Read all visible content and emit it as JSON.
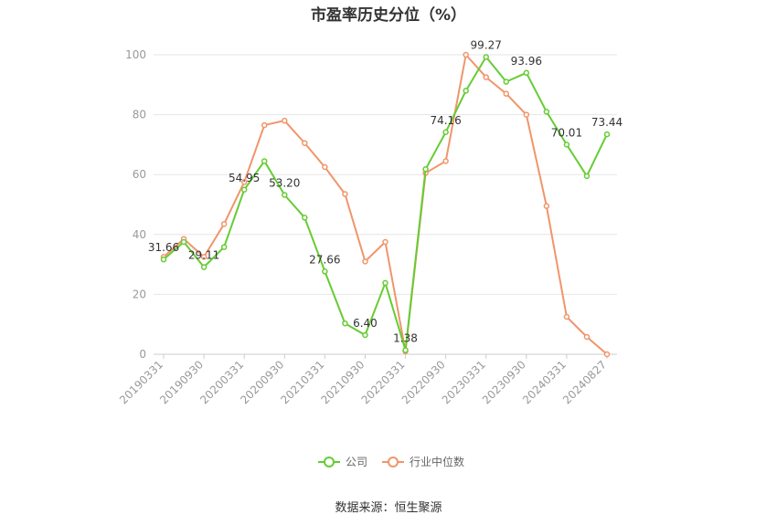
{
  "chart_data": {
    "type": "line",
    "title": "市盈率历史分位（%）",
    "source": "数据来源：恒生聚源",
    "ylim": [
      0,
      100
    ],
    "yticks": [
      0,
      20,
      40,
      60,
      80,
      100
    ],
    "x": [
      "20190331",
      "20190630",
      "20190930",
      "20191231",
      "20200331",
      "20200630",
      "20200930",
      "20201231",
      "20210331",
      "20210630",
      "20210930",
      "20211231",
      "20220331",
      "20220630",
      "20220930",
      "20221231",
      "20230331",
      "20230630",
      "20230930",
      "20231231",
      "20240331",
      "20240630",
      "20240827"
    ],
    "xtick_labels": [
      "20190331",
      "20190930",
      "20200331",
      "20200930",
      "20210331",
      "20210930",
      "20220331",
      "20220930",
      "20230331",
      "20230930",
      "20240331",
      "20240827"
    ],
    "xtick_index": [
      0,
      2,
      4,
      6,
      8,
      10,
      12,
      14,
      16,
      18,
      20,
      22
    ],
    "series": [
      {
        "name": "公司",
        "color": "#66cc33",
        "values": [
          31.66,
          37.5,
          29.11,
          35.8,
          54.95,
          64.5,
          53.2,
          45.6,
          27.66,
          10.3,
          6.4,
          23.8,
          1.38,
          61.8,
          74.16,
          88.0,
          99.27,
          91.0,
          93.96,
          81.0,
          70.01,
          59.5,
          73.44
        ],
        "data_labels": {
          "0": "31.66",
          "2": "29.11",
          "4": "54.95",
          "6": "53.20",
          "8": "27.66",
          "10": "6.40",
          "12": "1.38",
          "14": "74.16",
          "16": "99.27",
          "18": "93.96",
          "20": "70.01",
          "22": "73.44"
        }
      },
      {
        "name": "行业中位数",
        "color": "#f0956a",
        "values": [
          32.5,
          38.5,
          32.5,
          43.5,
          57.5,
          76.5,
          78.0,
          70.5,
          62.5,
          53.5,
          31.0,
          37.5,
          1.0,
          60.5,
          64.5,
          100.0,
          92.5,
          87.0,
          80.0,
          49.5,
          12.5,
          5.8,
          0.0
        ]
      }
    ],
    "legend_position": "bottom",
    "grid": true
  }
}
